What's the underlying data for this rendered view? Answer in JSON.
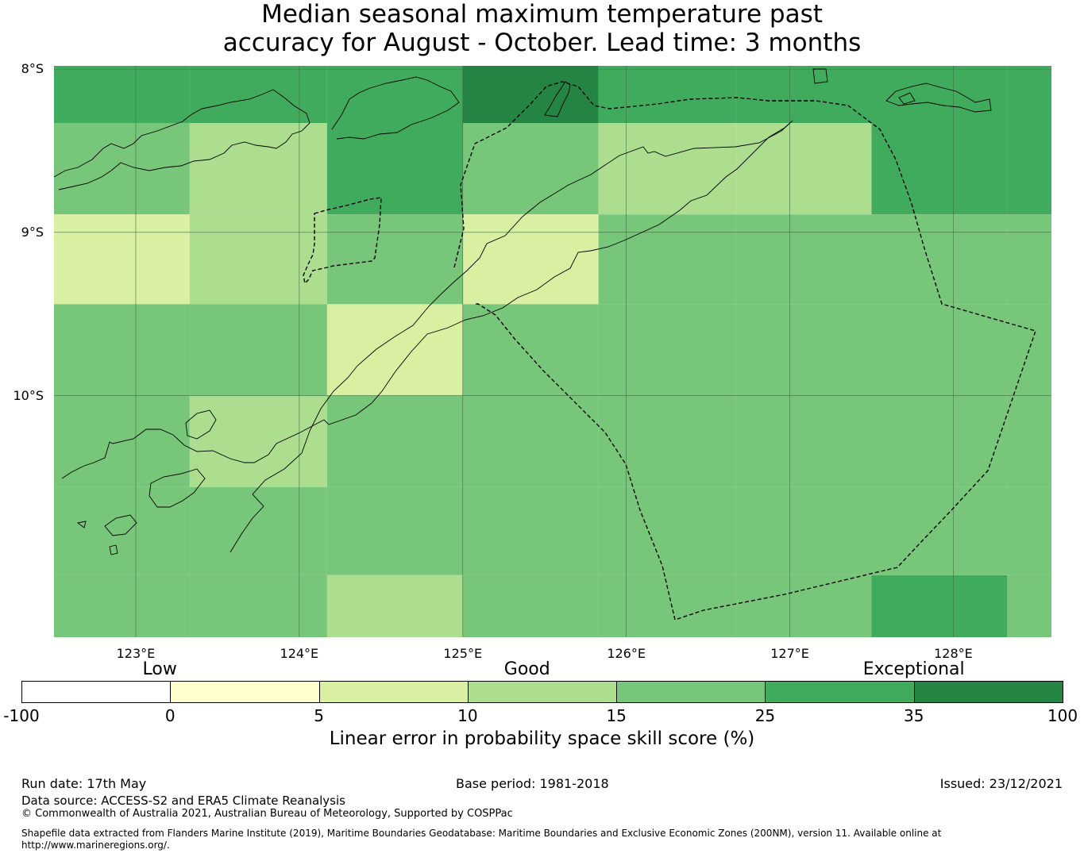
{
  "title_line1": "Median seasonal maximum temperature past",
  "title_line2": "accuracy for August - October. Lead time: 3 months",
  "map": {
    "lat_labels": [
      {
        "text": "8°S",
        "lat": -8
      },
      {
        "text": "9°S",
        "lat": -9
      },
      {
        "text": "10°S",
        "lat": -10
      }
    ],
    "lon_labels": [
      {
        "text": "123°E",
        "lon": 123
      },
      {
        "text": "124°E",
        "lon": 124
      },
      {
        "text": "125°E",
        "lon": 125
      },
      {
        "text": "126°E",
        "lon": 126
      },
      {
        "text": "127°E",
        "lon": 127
      },
      {
        "text": "128°E",
        "lon": 128
      }
    ],
    "extent": {
      "lon_min": 122.5,
      "lon_max": 128.6,
      "lat_max": -7.98,
      "lat_min": -11.48
    },
    "grid_lons": [
      122.5,
      123.33,
      124.17,
      125.0,
      125.83,
      126.67,
      127.5,
      128.33,
      129.17
    ],
    "grid_lats": [
      -7.98,
      -8.33,
      -8.89,
      -9.44,
      -10.0,
      -10.56,
      -11.1,
      -11.48
    ],
    "cell_skill_scores": [
      [
        25,
        25,
        25,
        35,
        25,
        25,
        25,
        25
      ],
      [
        15,
        10,
        25,
        15,
        10,
        10,
        25,
        25
      ],
      [
        5,
        10,
        15,
        5,
        15,
        15,
        15,
        15
      ],
      [
        15,
        15,
        5,
        15,
        15,
        15,
        15,
        15
      ],
      [
        15,
        10,
        15,
        15,
        15,
        15,
        15,
        15
      ],
      [
        15,
        15,
        15,
        15,
        15,
        15,
        15,
        15
      ],
      [
        15,
        15,
        10,
        15,
        15,
        15,
        25,
        15
      ]
    ]
  },
  "colorbar": {
    "categories": [
      {
        "text": "Low",
        "value": -7
      },
      {
        "text": "Good",
        "value": 12
      },
      {
        "text": "Exceptional",
        "value": 35
      }
    ],
    "segments": [
      {
        "from": -100,
        "to": 0,
        "color": "#ffffff"
      },
      {
        "from": 0,
        "to": 5,
        "color": "#ffffcc"
      },
      {
        "from": 5,
        "to": 10,
        "color": "#d9f0a3"
      },
      {
        "from": 10,
        "to": 15,
        "color": "#addd8e"
      },
      {
        "from": 15,
        "to": 25,
        "color": "#78c679"
      },
      {
        "from": 25,
        "to": 35,
        "color": "#41ab5d"
      },
      {
        "from": 35,
        "to": 100,
        "color": "#238443"
      }
    ],
    "ticks": [
      "-100",
      "0",
      "5",
      "10",
      "15",
      "25",
      "35",
      "100"
    ],
    "title": "Linear error in probability space skill score (%)"
  },
  "footer": {
    "run_date": "Run date: 17th May",
    "base_period": "Base period: 1981-2018",
    "issued": "Issued: 23/12/2021",
    "data_source": "Data source: ACCESS-S2 and ERA5 Climate Reanalysis",
    "copyright": "© Commonwealth of Australia 2021, Australian Bureau of Meteorology, Supported by COSPPac",
    "shapefile_line1": "Shapefile data extracted from Flanders Marine Institute (2019), Maritime Boundaries Geodatabase: Maritime Boundaries and Exclusive Economic Zones (200NM), version 11. Available online at",
    "shapefile_line2": "http://www.marineregions.org/."
  }
}
